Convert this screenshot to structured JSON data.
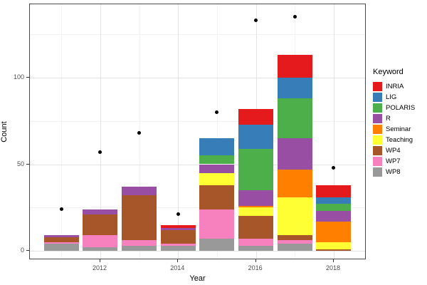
{
  "figure": {
    "x_axis_title": "Year",
    "y_axis_title": "Count"
  },
  "legend": {
    "title": "Keyword"
  },
  "chart_data": {
    "type": "bar",
    "subtype": "stacked-bars-with-scatter-points",
    "title": "",
    "xlabel": "Year",
    "ylabel": "Count",
    "x": [
      2011,
      2012,
      2013,
      2014,
      2015,
      2016,
      2017,
      2018
    ],
    "x_tick_values": [
      2012,
      2014,
      2016,
      2018
    ],
    "x_tick_labels": [
      "2012",
      "2014",
      "2016",
      "2018"
    ],
    "y_tick_values": [
      0,
      50,
      100
    ],
    "y_tick_labels": [
      "0",
      "50",
      "100"
    ],
    "y_minor_values": [
      25,
      75,
      125
    ],
    "x_minor_values": [
      2011,
      2013,
      2015,
      2017
    ],
    "ylim": [
      -5,
      142
    ],
    "xlim": [
      2010.2,
      2018.85
    ],
    "grid": "major+minor",
    "legend_position": "right",
    "legend_title": "Keyword",
    "point_color": "#000000",
    "series": [
      {
        "name": "INRIA",
        "color": "#E41A1C",
        "values": [
          0,
          0,
          0,
          2,
          0,
          9,
          13,
          7
        ]
      },
      {
        "name": "LIG",
        "color": "#377EB8",
        "values": [
          0,
          0,
          0,
          0,
          10,
          14,
          12,
          4
        ]
      },
      {
        "name": "POLARIS",
        "color": "#4DAF4A",
        "values": [
          0,
          0,
          0,
          0,
          5,
          24,
          23,
          4
        ]
      },
      {
        "name": "R",
        "color": "#984EA3",
        "values": [
          1,
          3,
          5,
          1,
          5,
          9,
          18,
          6
        ]
      },
      {
        "name": "Seminar",
        "color": "#FF7F00",
        "values": [
          0,
          0,
          0,
          0,
          0,
          1,
          16,
          12
        ]
      },
      {
        "name": "Teaching",
        "color": "#FFFF33",
        "values": [
          0,
          0,
          0,
          0,
          7,
          5,
          22,
          4
        ]
      },
      {
        "name": "WP4",
        "color": "#A65628",
        "values": [
          3,
          12,
          26,
          8,
          14,
          13,
          3,
          1
        ]
      },
      {
        "name": "WP7",
        "color": "#F781BF",
        "values": [
          1,
          7,
          3,
          1,
          17,
          4,
          2,
          0
        ]
      },
      {
        "name": "WP8",
        "color": "#999999",
        "values": [
          4,
          2,
          3,
          3,
          7,
          3,
          4,
          0
        ]
      }
    ],
    "stack_order_bottom_to_top": [
      "WP8",
      "WP7",
      "WP4",
      "Teaching",
      "Seminar",
      "R",
      "POLARIS",
      "LIG",
      "INRIA"
    ],
    "bar_totals": [
      9,
      24,
      37,
      15,
      65,
      82,
      113,
      38
    ],
    "points": [
      24,
      57,
      68,
      21,
      80,
      133,
      135,
      48
    ]
  }
}
